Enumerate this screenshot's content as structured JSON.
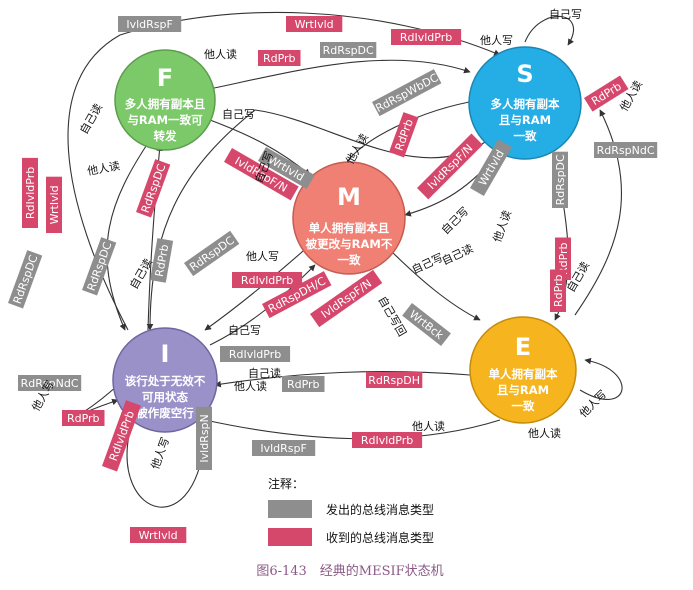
{
  "colors": {
    "issued_tag": "#8e8e8e",
    "received_tag": "#d6476c",
    "state_F": "#7cc96a",
    "state_S": "#25aee6",
    "state_M": "#f07f74",
    "state_I": "#9b91c9",
    "state_E": "#f6b41e",
    "caption": "#8a5a86"
  },
  "states": {
    "F": {
      "letter": "F",
      "desc": [
        "多人拥有副本且",
        "与RAM一致可",
        "转发"
      ]
    },
    "S": {
      "letter": "S",
      "desc": [
        "多人拥有副本",
        "且与RAM",
        "一致"
      ]
    },
    "M": {
      "letter": "M",
      "desc": [
        "单人拥有副本且",
        "被更改与RAM不",
        "一致"
      ]
    },
    "I": {
      "letter": "I",
      "desc": [
        "该行处于无效不",
        "可用状态",
        "被作废空行"
      ]
    },
    "E": {
      "letter": "E",
      "desc": [
        "单人拥有副本",
        "且与RAM",
        "一致"
      ]
    }
  },
  "tags": [
    {
      "text": "IvldRspF",
      "kind": "issued"
    },
    {
      "text": "WrtIvld",
      "kind": "received"
    },
    {
      "text": "RdIvldPrb",
      "kind": "received"
    },
    {
      "text": "RdPrb",
      "kind": "received"
    },
    {
      "text": "RdRspDC",
      "kind": "issued"
    },
    {
      "text": "WrtIvld",
      "kind": "issued"
    },
    {
      "text": "IvldRspF/N",
      "kind": "received"
    },
    {
      "text": "RdRspWbDC",
      "kind": "issued"
    },
    {
      "text": "RdPrb",
      "kind": "received"
    },
    {
      "text": "RdPrb",
      "kind": "received"
    },
    {
      "text": "RdRspNdC",
      "kind": "issued"
    },
    {
      "text": "IvldRspF/N",
      "kind": "received"
    },
    {
      "text": "WrtIvld",
      "kind": "issued"
    },
    {
      "text": "RdRspDC",
      "kind": "issued"
    },
    {
      "text": "RdIvldPrb",
      "kind": "received"
    },
    {
      "text": "WrtIvld",
      "kind": "received"
    },
    {
      "text": "RdRspDC",
      "kind": "issued"
    },
    {
      "text": "RdRspDC",
      "kind": "received"
    },
    {
      "text": "RdPrb",
      "kind": "issued"
    },
    {
      "text": "RdRspDC",
      "kind": "issued"
    },
    {
      "text": "RdIvldPrb",
      "kind": "received"
    },
    {
      "text": "RdRspDH/C",
      "kind": "received"
    },
    {
      "text": "IvldRspF/N",
      "kind": "received"
    },
    {
      "text": "RdIvldPrb",
      "kind": "issued"
    },
    {
      "text": "WrtBck",
      "kind": "issued"
    },
    {
      "text": "RdPrb",
      "kind": "received"
    },
    {
      "text": "RdRspNdC",
      "kind": "issued"
    },
    {
      "text": "RdPrb",
      "kind": "received"
    },
    {
      "text": "RdPrb",
      "kind": "issued"
    },
    {
      "text": "RdRspDH",
      "kind": "received"
    },
    {
      "text": "IvldRspF",
      "kind": "issued"
    },
    {
      "text": "RdIvldPrb",
      "kind": "received"
    },
    {
      "text": "RdIvldPrb",
      "kind": "received"
    },
    {
      "text": "WrtIvld",
      "kind": "received"
    },
    {
      "text": "IvldRspN",
      "kind": "issued"
    },
    {
      "text": "RdRspDC",
      "kind": "issued"
    },
    {
      "text": "RdPrb",
      "kind": "received"
    }
  ],
  "labels": [
    "他人读",
    "他人写",
    "自己写",
    "自己读",
    "他人读",
    "他人写",
    "自己写",
    "自己写",
    "他人读",
    "他人读",
    "自己写",
    "自己读",
    "自己写",
    "自己写回",
    "他人读",
    "自己读",
    "他人读",
    "他人写",
    "自己读",
    "他人读",
    "他人写",
    "自己读",
    "他人写",
    "他人读",
    "自己写"
  ],
  "legend": {
    "title": "注释：",
    "issued": "发出的总线消息类型",
    "received": "收到的总线消息类型"
  },
  "caption": "图6-143　经典的MESIF状态机"
}
